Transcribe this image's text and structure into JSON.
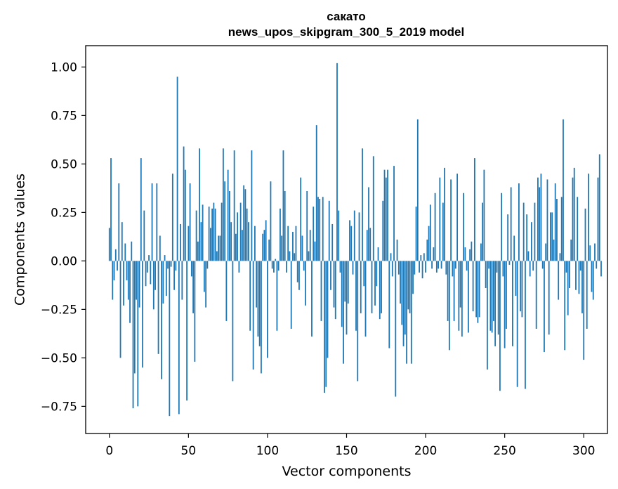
{
  "chart_data": {
    "type": "bar",
    "title": "сакато",
    "subtitle": "news_upos_skipgram_300_5_2019 model",
    "xlabel": "Vector components",
    "ylabel": "Components values",
    "xlim": [
      -15,
      315
    ],
    "ylim": [
      -0.89,
      1.11
    ],
    "xticks": [
      0,
      50,
      100,
      150,
      200,
      250,
      300
    ],
    "xtick_labels": [
      "0",
      "50",
      "100",
      "150",
      "200",
      "250",
      "300"
    ],
    "yticks": [
      -0.75,
      -0.5,
      -0.25,
      0.0,
      0.25,
      0.5,
      0.75,
      1.0
    ],
    "ytick_labels": [
      "−0.75",
      "−0.50",
      "−0.25",
      "0.00",
      "0.25",
      "0.50",
      "0.75",
      "1.00"
    ],
    "bar_color": "#1f77b4",
    "grid": false,
    "legend": "none",
    "series": [
      {
        "values": [
          0.17,
          0.53,
          -0.2,
          -0.1,
          0.06,
          -0.05,
          0.4,
          -0.5,
          0.2,
          -0.23,
          0.09,
          -0.1,
          -0.2,
          -0.32,
          0.1,
          -0.76,
          -0.58,
          -0.2,
          -0.75,
          -0.24,
          0.53,
          -0.55,
          0.26,
          -0.13,
          -0.06,
          0.03,
          -0.12,
          0.4,
          -0.25,
          -0.15,
          0.4,
          -0.48,
          0.13,
          -0.61,
          -0.22,
          0.03,
          -0.18,
          -0.04,
          -0.8,
          -0.03,
          0.45,
          -0.15,
          -0.05,
          0.95,
          -0.79,
          0.19,
          -0.2,
          0.59,
          0.47,
          -0.72,
          0.18,
          0.4,
          -0.08,
          -0.27,
          -0.52,
          0.26,
          0.1,
          0.58,
          0.2,
          0.29,
          -0.16,
          -0.24,
          -0.04,
          0.28,
          0.17,
          0.27,
          0.3,
          0.27,
          0.05,
          0.13,
          0.13,
          0.3,
          0.58,
          0.41,
          -0.31,
          0.47,
          0.36,
          0.2,
          -0.62,
          0.57,
          0.14,
          0.25,
          -0.06,
          0.3,
          0.16,
          0.39,
          0.37,
          0.27,
          0.2,
          -0.36,
          0.57,
          -0.56,
          0.18,
          -0.24,
          -0.39,
          -0.44,
          -0.58,
          0.14,
          0.16,
          0.21,
          -0.5,
          0.11,
          0.41,
          -0.04,
          -0.06,
          0.01,
          -0.36,
          -0.05,
          0.27,
          0.13,
          0.57,
          0.36,
          -0.06,
          0.18,
          0.05,
          -0.35,
          0.15,
          0.04,
          0.18,
          -0.11,
          -0.15,
          0.43,
          0.13,
          -0.05,
          -0.23,
          0.36,
          0.05,
          0.16,
          -0.39,
          0.28,
          0.1,
          0.7,
          0.33,
          0.32,
          -0.31,
          0.33,
          -0.68,
          -0.65,
          -0.5,
          0.31,
          -0.15,
          0.19,
          -0.24,
          -0.3,
          1.02,
          0.26,
          -0.06,
          -0.34,
          -0.53,
          -0.21,
          -0.38,
          -0.22,
          0.21,
          0.18,
          -0.07,
          0.26,
          -0.36,
          -0.62,
          0.25,
          -0.27,
          0.58,
          -0.13,
          -0.39,
          0.16,
          0.38,
          0.17,
          -0.27,
          0.54,
          -0.23,
          -0.13,
          0.07,
          -0.3,
          -0.27,
          0.31,
          0.47,
          0.43,
          0.47,
          -0.45,
          0.04,
          -0.08,
          0.49,
          -0.7,
          0.11,
          -0.07,
          -0.22,
          -0.33,
          -0.44,
          -0.38,
          -0.53,
          -0.25,
          -0.27,
          -0.53,
          -0.17,
          -0.07,
          0.28,
          0.73,
          -0.06,
          0.03,
          -0.09,
          0.04,
          -0.06,
          0.11,
          0.18,
          0.29,
          -0.04,
          0.07,
          0.35,
          -0.06,
          -0.04,
          0.43,
          -0.04,
          0.3,
          0.48,
          -0.07,
          -0.31,
          -0.46,
          0.42,
          -0.08,
          -0.31,
          -0.04,
          0.45,
          -0.36,
          -0.24,
          -0.39,
          0.35,
          0.07,
          -0.05,
          -0.37,
          0.06,
          0.1,
          -0.26,
          0.53,
          -0.29,
          -0.32,
          -0.29,
          0.09,
          0.3,
          0.47,
          -0.14,
          -0.56,
          -0.04,
          -0.36,
          -0.37,
          -0.31,
          -0.44,
          -0.06,
          -0.38,
          -0.67,
          0.35,
          -0.08,
          -0.45,
          -0.35,
          0.24,
          -0.02,
          0.38,
          -0.44,
          0.13,
          -0.18,
          -0.65,
          0.4,
          -0.26,
          -0.29,
          0.3,
          -0.66,
          0.24,
          0.05,
          -0.08,
          0.2,
          -0.05,
          0.3,
          -0.35,
          0.43,
          0.38,
          0.45,
          -0.04,
          -0.47,
          0.09,
          0.42,
          -0.38,
          0.25,
          0.25,
          0.11,
          0.4,
          0.32,
          -0.2,
          0.04,
          0.33,
          0.73,
          -0.46,
          -0.06,
          -0.28,
          -0.14,
          0.11,
          0.43,
          0.48,
          -0.15,
          0.33,
          -0.17,
          -0.05,
          -0.27,
          -0.51,
          0.27,
          -0.35,
          0.45,
          0.08,
          -0.16,
          -0.2,
          0.09,
          -0.04,
          0.43,
          0.55,
          -0.08
        ]
      }
    ]
  }
}
